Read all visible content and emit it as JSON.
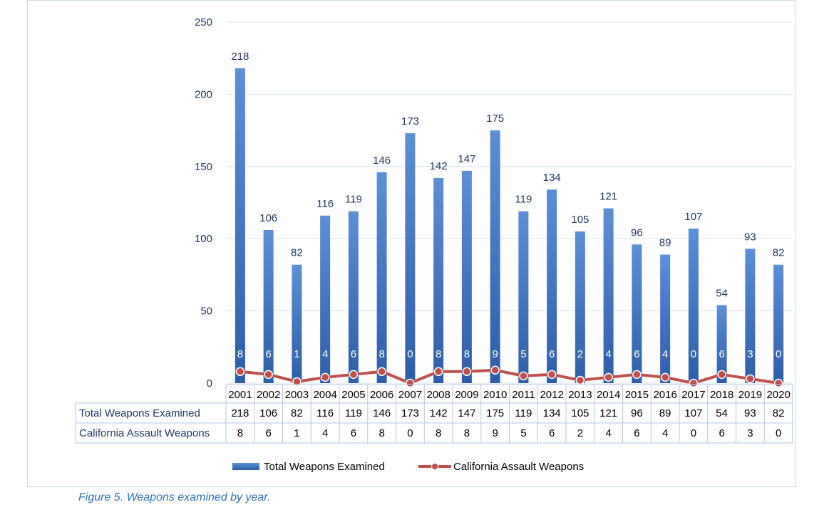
{
  "chart_data": {
    "type": "bar",
    "categories": [
      "2001",
      "2002",
      "2003",
      "2004",
      "2005",
      "2006",
      "2007",
      "2008",
      "2009",
      "2010",
      "2011",
      "2012",
      "2013",
      "2014",
      "2015",
      "2016",
      "2017",
      "2018",
      "2019",
      "2020"
    ],
    "series": [
      {
        "name": "Total Weapons Examined",
        "kind": "bar",
        "values": [
          218,
          106,
          82,
          116,
          119,
          146,
          173,
          142,
          147,
          175,
          119,
          134,
          105,
          121,
          96,
          89,
          107,
          54,
          93,
          82
        ]
      },
      {
        "name": "California Assault Weapons",
        "kind": "line",
        "values": [
          8,
          6,
          1,
          4,
          6,
          8,
          0,
          8,
          8,
          9,
          5,
          6,
          2,
          4,
          6,
          4,
          0,
          6,
          3,
          0
        ]
      }
    ],
    "y_ticks": [
      "0",
      "50",
      "100",
      "150",
      "200",
      "250"
    ],
    "ylim": [
      0,
      250
    ],
    "grid": true,
    "legend": "bottom",
    "data_table": true
  },
  "caption": "Figure 5. Weapons examined by year.",
  "colors": {
    "bar_top": "#5b8fd6",
    "bar_bottom": "#2d5ea8",
    "line": "#c0504d",
    "label": "#1f3864",
    "grid": "#d9e2ec",
    "table_border": "#b4c7e7"
  }
}
